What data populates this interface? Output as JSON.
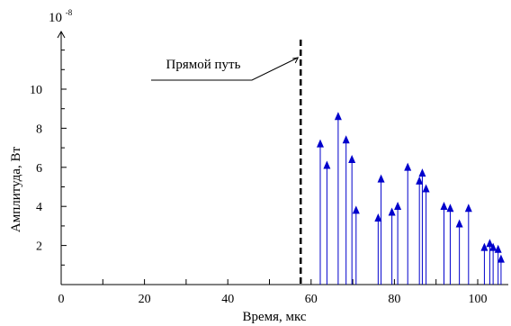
{
  "chart_data": {
    "type": "stem",
    "xlabel": "Время, мкс",
    "ylabel": "Амплитуда, Вт",
    "y_exponent_base": "10",
    "y_exponent_power": "-8",
    "xlim": [
      0,
      107
    ],
    "ylim": [
      0,
      13
    ],
    "x_ticks": [
      0,
      20,
      40,
      60,
      80,
      100
    ],
    "y_ticks": [
      2,
      4,
      6,
      8,
      10
    ],
    "direct_path": {
      "label": "Прямой путь",
      "x": 57.5
    },
    "color": "#0000cc",
    "points": [
      {
        "x": 62.2,
        "y": 7.3
      },
      {
        "x": 63.8,
        "y": 6.2
      },
      {
        "x": 66.5,
        "y": 8.7
      },
      {
        "x": 68.4,
        "y": 7.5
      },
      {
        "x": 69.8,
        "y": 6.5
      },
      {
        "x": 70.8,
        "y": 3.9
      },
      {
        "x": 76.1,
        "y": 3.5
      },
      {
        "x": 76.8,
        "y": 5.5
      },
      {
        "x": 79.4,
        "y": 3.8
      },
      {
        "x": 80.8,
        "y": 4.1
      },
      {
        "x": 83.2,
        "y": 6.1
      },
      {
        "x": 86.0,
        "y": 5.4
      },
      {
        "x": 86.7,
        "y": 5.8
      },
      {
        "x": 87.6,
        "y": 5.0
      },
      {
        "x": 91.9,
        "y": 4.1
      },
      {
        "x": 93.4,
        "y": 4.0
      },
      {
        "x": 95.6,
        "y": 3.2
      },
      {
        "x": 97.8,
        "y": 4.0
      },
      {
        "x": 101.6,
        "y": 2.0
      },
      {
        "x": 102.9,
        "y": 2.2
      },
      {
        "x": 103.7,
        "y": 2.0
      },
      {
        "x": 104.9,
        "y": 1.9
      },
      {
        "x": 105.6,
        "y": 1.4
      }
    ]
  }
}
